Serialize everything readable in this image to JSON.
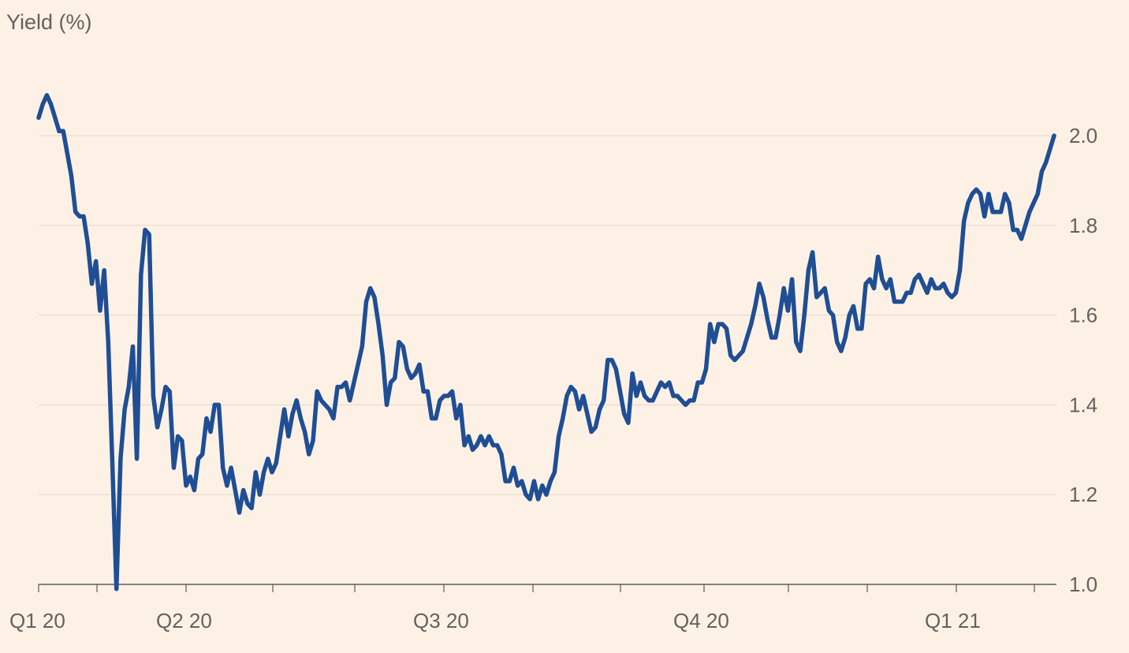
{
  "chart_data": {
    "type": "line",
    "ylabel": "Yield (%)",
    "ylim": [
      1.0,
      2.0
    ],
    "yticks": [
      1.0,
      1.2,
      1.4,
      1.6,
      1.8,
      2.0
    ],
    "ytick_labels": [
      "1.0",
      "1.2",
      "1.4",
      "1.6",
      "1.8",
      "2.0"
    ],
    "y_axis_position": "right",
    "grid": "horizontal",
    "x_quarter_labels": [
      "Q1 20",
      "Q2 20",
      "Q3 20",
      "Q4 20",
      "Q1 21"
    ],
    "x_tick_count": 13,
    "colors": {
      "series": "#1f4e94",
      "background": "#fdf1e6",
      "grid": "#e8dbd0",
      "text": "#66605c"
    },
    "series": [
      {
        "values": [
          2.04,
          2.07,
          2.09,
          2.07,
          2.04,
          2.01,
          2.01,
          1.96,
          1.91,
          1.83,
          1.82,
          1.82,
          1.76,
          1.67,
          1.72,
          1.61,
          1.7,
          1.54,
          1.27,
          0.99,
          1.28,
          1.39,
          1.44,
          1.53,
          1.28,
          1.69,
          1.79,
          1.78,
          1.42,
          1.35,
          1.39,
          1.44,
          1.43,
          1.26,
          1.33,
          1.32,
          1.22,
          1.24,
          1.21,
          1.28,
          1.29,
          1.37,
          1.34,
          1.4,
          1.4,
          1.26,
          1.22,
          1.26,
          1.21,
          1.16,
          1.21,
          1.18,
          1.17,
          1.25,
          1.2,
          1.25,
          1.28,
          1.25,
          1.27,
          1.33,
          1.39,
          1.33,
          1.38,
          1.41,
          1.37,
          1.34,
          1.29,
          1.32,
          1.43,
          1.41,
          1.4,
          1.39,
          1.37,
          1.44,
          1.44,
          1.45,
          1.41,
          1.45,
          1.49,
          1.53,
          1.63,
          1.66,
          1.64,
          1.58,
          1.51,
          1.4,
          1.45,
          1.46,
          1.54,
          1.53,
          1.48,
          1.46,
          1.47,
          1.49,
          1.43,
          1.43,
          1.37,
          1.37,
          1.41,
          1.42,
          1.42,
          1.43,
          1.37,
          1.4,
          1.31,
          1.33,
          1.3,
          1.31,
          1.33,
          1.31,
          1.33,
          1.31,
          1.31,
          1.29,
          1.23,
          1.23,
          1.26,
          1.22,
          1.23,
          1.2,
          1.19,
          1.23,
          1.19,
          1.22,
          1.2,
          1.23,
          1.25,
          1.33,
          1.37,
          1.42,
          1.44,
          1.43,
          1.39,
          1.42,
          1.38,
          1.34,
          1.35,
          1.39,
          1.41,
          1.5,
          1.5,
          1.48,
          1.43,
          1.38,
          1.36,
          1.47,
          1.42,
          1.45,
          1.42,
          1.41,
          1.41,
          1.43,
          1.45,
          1.44,
          1.45,
          1.42,
          1.42,
          1.41,
          1.4,
          1.41,
          1.41,
          1.45,
          1.45,
          1.48,
          1.58,
          1.54,
          1.58,
          1.58,
          1.57,
          1.51,
          1.5,
          1.51,
          1.52,
          1.55,
          1.58,
          1.62,
          1.67,
          1.64,
          1.59,
          1.55,
          1.55,
          1.6,
          1.66,
          1.61,
          1.68,
          1.54,
          1.52,
          1.6,
          1.7,
          1.74,
          1.64,
          1.65,
          1.66,
          1.61,
          1.6,
          1.54,
          1.52,
          1.55,
          1.6,
          1.62,
          1.57,
          1.57,
          1.67,
          1.68,
          1.66,
          1.73,
          1.68,
          1.66,
          1.68,
          1.63,
          1.63,
          1.63,
          1.65,
          1.65,
          1.68,
          1.69,
          1.67,
          1.65,
          1.68,
          1.66,
          1.66,
          1.67,
          1.65,
          1.64,
          1.65,
          1.7,
          1.81,
          1.85,
          1.87,
          1.88,
          1.87,
          1.82,
          1.87,
          1.83,
          1.83,
          1.83,
          1.87,
          1.85,
          1.79,
          1.79,
          1.77,
          1.8,
          1.83,
          1.85,
          1.87,
          1.92,
          1.94,
          1.97,
          2.0
        ]
      }
    ]
  }
}
